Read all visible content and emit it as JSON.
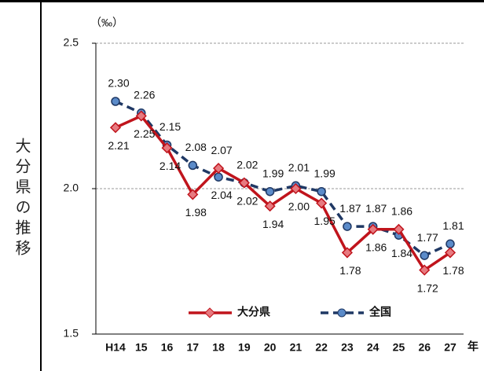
{
  "row_label": "大分県の推移",
  "chart_data": {
    "type": "line",
    "ylabel": "（‰）",
    "xlabel": "年",
    "categories": [
      "H14",
      "15",
      "16",
      "17",
      "18",
      "19",
      "20",
      "21",
      "22",
      "23",
      "24",
      "25",
      "26",
      "27"
    ],
    "series": [
      {
        "name": "大分県",
        "color": "#c0141c",
        "marker_fill": "#e77a80",
        "marker": "diamond",
        "dash": false,
        "values": [
          2.21,
          2.25,
          2.14,
          1.98,
          2.07,
          2.02,
          1.94,
          2.0,
          1.95,
          1.78,
          1.86,
          1.86,
          1.72,
          1.78
        ],
        "value_labels": [
          "2.21",
          "2.25",
          "2.14",
          "1.98",
          "2.07",
          "2.02",
          "1.94",
          "2.00",
          "1.95",
          "1.78",
          "1.86",
          "1.86",
          "1.72",
          "1.78"
        ]
      },
      {
        "name": "全国",
        "color": "#1f3864",
        "marker_fill": "#5b8bc9",
        "marker": "circle",
        "dash": true,
        "values": [
          2.3,
          2.26,
          2.15,
          2.08,
          2.04,
          2.02,
          1.99,
          2.01,
          1.99,
          1.87,
          1.87,
          1.84,
          1.77,
          1.81
        ],
        "value_labels": [
          "2.30",
          "2.26",
          "2.15",
          "2.08",
          "2.04",
          "2.02",
          "1.99",
          "2.01",
          "1.99",
          "1.87",
          "1.87",
          "1.84",
          "1.77",
          "1.81"
        ]
      }
    ],
    "ylim": [
      1.5,
      2.5
    ],
    "yticks": [
      {
        "value": 1.5,
        "label": "1.5"
      },
      {
        "value": 2,
        "label": "2.0"
      },
      {
        "value": 2.5,
        "label": "2.5"
      }
    ],
    "grid": true
  }
}
